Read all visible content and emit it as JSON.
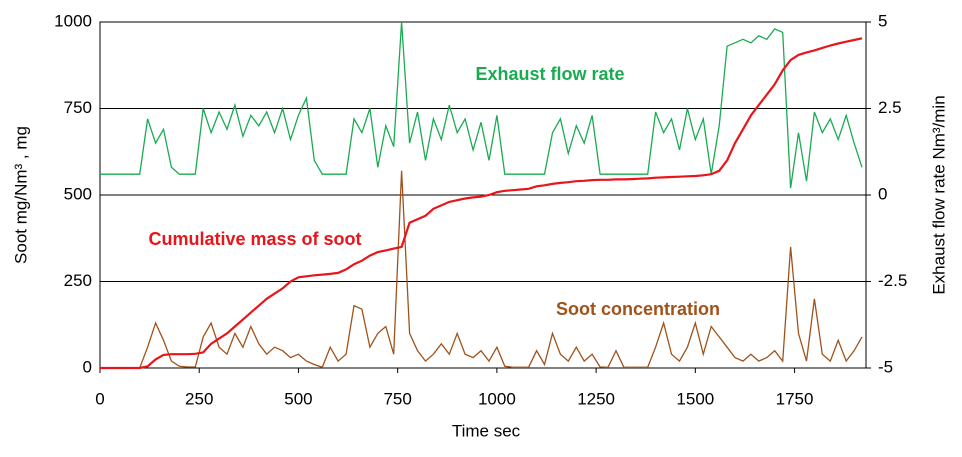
{
  "chart_data": {
    "type": "line",
    "xlabel": "Time  sec",
    "ylabel": "Soot   mg/Nm³ , mg",
    "y2label": "Exhaust flow rate   Nm³/min",
    "x": [
      0,
      20,
      40,
      60,
      80,
      100,
      120,
      140,
      160,
      180,
      200,
      220,
      240,
      260,
      280,
      300,
      320,
      340,
      360,
      380,
      400,
      420,
      440,
      460,
      480,
      500,
      520,
      540,
      560,
      580,
      600,
      620,
      640,
      660,
      680,
      700,
      720,
      740,
      760,
      780,
      800,
      820,
      840,
      860,
      880,
      900,
      920,
      940,
      960,
      980,
      1000,
      1020,
      1040,
      1060,
      1080,
      1100,
      1120,
      1140,
      1160,
      1180,
      1200,
      1220,
      1240,
      1260,
      1280,
      1300,
      1320,
      1340,
      1360,
      1380,
      1400,
      1420,
      1440,
      1460,
      1480,
      1500,
      1520,
      1540,
      1560,
      1580,
      1600,
      1620,
      1640,
      1660,
      1680,
      1700,
      1720,
      1740,
      1760,
      1780,
      1800,
      1820,
      1840,
      1860,
      1880,
      1900,
      1920
    ],
    "series": [
      {
        "name": "Exhaust flow rate",
        "color": "#1aab52",
        "axis": "y2",
        "values": [
          0.6,
          0.6,
          0.6,
          0.6,
          0.6,
          0.6,
          2.2,
          1.5,
          1.9,
          0.8,
          0.6,
          0.6,
          0.6,
          2.5,
          1.8,
          2.4,
          1.9,
          2.6,
          1.7,
          2.3,
          2.0,
          2.4,
          1.8,
          2.5,
          1.6,
          2.3,
          2.8,
          1.0,
          0.6,
          0.6,
          0.6,
          0.6,
          2.2,
          1.8,
          2.5,
          0.8,
          2.0,
          1.4,
          5.0,
          1.5,
          2.4,
          1.0,
          2.2,
          1.6,
          2.6,
          1.8,
          2.2,
          1.3,
          2.1,
          1.0,
          2.3,
          0.6,
          0.6,
          0.6,
          0.6,
          0.6,
          0.6,
          1.8,
          2.2,
          1.2,
          2.0,
          1.5,
          2.3,
          0.6,
          0.6,
          0.6,
          0.6,
          0.6,
          0.6,
          0.6,
          2.4,
          1.8,
          2.2,
          1.3,
          2.5,
          1.6,
          2.2,
          0.6,
          2.0,
          4.3,
          4.4,
          4.5,
          4.4,
          4.6,
          4.5,
          4.8,
          4.7,
          0.2,
          1.8,
          0.4,
          2.4,
          1.8,
          2.2,
          1.6,
          2.3,
          1.5,
          0.8
        ]
      },
      {
        "name": "Cumulative mass of soot",
        "color": "#e8151b",
        "values": [
          0,
          0,
          0,
          0,
          0,
          0,
          5,
          25,
          38,
          40,
          40,
          40,
          41,
          45,
          70,
          85,
          100,
          120,
          140,
          160,
          180,
          200,
          215,
          230,
          250,
          262,
          265,
          268,
          270,
          272,
          275,
          285,
          300,
          310,
          325,
          335,
          340,
          345,
          350,
          420,
          430,
          440,
          460,
          470,
          480,
          485,
          490,
          493,
          495,
          500,
          508,
          512,
          514,
          516,
          518,
          525,
          528,
          532,
          535,
          537,
          540,
          541,
          543,
          544,
          544,
          545,
          545,
          546,
          547,
          548,
          550,
          551,
          552,
          553,
          554,
          555,
          557,
          560,
          570,
          600,
          650,
          690,
          730,
          760,
          790,
          820,
          860,
          890,
          905,
          912,
          918,
          925,
          932,
          938,
          943,
          948,
          953
        ]
      },
      {
        "name": "Soot concentration",
        "color": "#a0521a",
        "values": [
          0,
          0,
          0,
          0,
          0,
          0,
          60,
          130,
          80,
          20,
          5,
          3,
          3,
          90,
          130,
          60,
          40,
          100,
          60,
          120,
          70,
          40,
          60,
          50,
          30,
          40,
          20,
          10,
          2,
          60,
          20,
          40,
          180,
          170,
          60,
          100,
          120,
          40,
          570,
          100,
          50,
          20,
          40,
          70,
          40,
          100,
          40,
          30,
          50,
          20,
          60,
          5,
          2,
          2,
          2,
          50,
          10,
          100,
          40,
          20,
          60,
          20,
          40,
          3,
          2,
          50,
          2,
          2,
          2,
          2,
          60,
          130,
          40,
          20,
          60,
          130,
          40,
          120,
          90,
          60,
          30,
          20,
          40,
          20,
          30,
          50,
          20,
          350,
          100,
          20,
          200,
          40,
          20,
          80,
          20,
          50,
          90
        ]
      }
    ],
    "xlim": [
      0,
      1930
    ],
    "xticks": [
      0,
      250,
      500,
      750,
      1000,
      1250,
      1500,
      1750
    ],
    "ylim": [
      0,
      1000
    ],
    "yticks": [
      0,
      250,
      500,
      750,
      1000
    ],
    "y2lim": [
      -5,
      5
    ],
    "y2ticks": [
      -5,
      -2.5,
      0,
      2.5,
      5
    ],
    "grid": true
  }
}
